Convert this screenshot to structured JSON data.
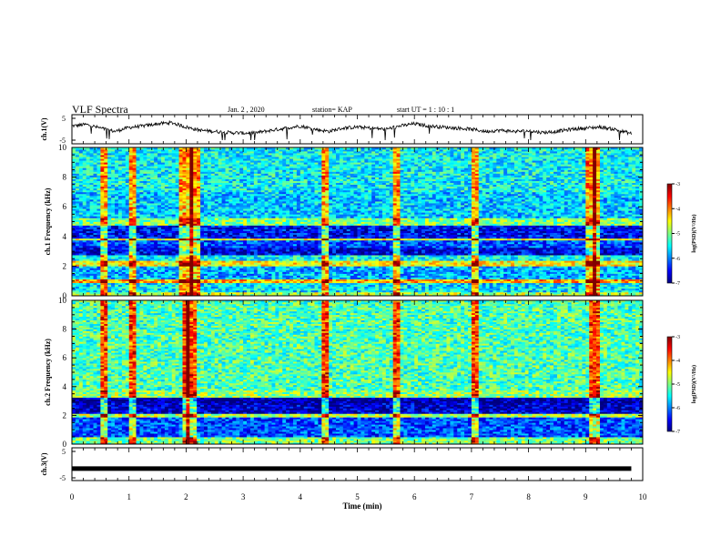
{
  "header": {
    "title": "VLF Spectra",
    "date": "Jan. 2 , 2020",
    "station": "station= KAP",
    "start": "start  UT =  1 : 10 : 1"
  },
  "chart_data": [
    {
      "type": "line",
      "panel": "ch1-voltage",
      "ylabel": "ch.1(V)",
      "ylim": [
        -5,
        5
      ],
      "yticks": [
        "5",
        "-5"
      ],
      "x_range_min": [
        0,
        9.8
      ],
      "series": [
        {
          "x": [
            0,
            0.25,
            0.5,
            0.75,
            1.0,
            1.25,
            1.5,
            1.75,
            2.0,
            2.25,
            2.5,
            2.75,
            3.0,
            3.25,
            3.5,
            3.75,
            4.0,
            4.25,
            4.5,
            4.75,
            5.0,
            5.25,
            5.5,
            5.75,
            6.0,
            6.25,
            6.5,
            6.75,
            7.0,
            7.25,
            7.5,
            7.75,
            8.0,
            8.25,
            8.5,
            8.75,
            9.0,
            9.25,
            9.5,
            9.8
          ],
          "values": [
            1.5,
            2.2,
            0.5,
            -1.0,
            0.8,
            1.5,
            2.5,
            3.0,
            1.0,
            -0.5,
            -1.0,
            -1.5,
            -1.8,
            -1.5,
            -0.5,
            0.5,
            1.5,
            0.0,
            -1.0,
            0.5,
            1.0,
            0.5,
            0.0,
            1.5,
            2.5,
            1.5,
            1.0,
            0.5,
            0.0,
            -1.0,
            -0.5,
            -1.0,
            -0.8,
            -1.5,
            -1.0,
            0.0,
            0.5,
            1.0,
            0.0,
            -2.0
          ]
        }
      ]
    },
    {
      "type": "heatmap",
      "panel": "ch1-spectrogram",
      "ylabel": "ch.1 Frequency (kHz)",
      "xlim": [
        0,
        10
      ],
      "ylim": [
        0,
        10
      ],
      "yticks": [
        0,
        2,
        4,
        6,
        8,
        10
      ],
      "colorbar": {
        "label": "log(PSD)(V²/Hz)",
        "range": [
          -7,
          -3
        ],
        "ticks": [
          "-3",
          "-4",
          "-5",
          "-6",
          "-7"
        ]
      },
      "bands_khz": [
        {
          "from": 0.0,
          "to": 0.3,
          "level": -4.8
        },
        {
          "from": 0.3,
          "to": 0.9,
          "level": -5.6
        },
        {
          "from": 0.9,
          "to": 1.1,
          "level": -4.2
        },
        {
          "from": 1.1,
          "to": 2.0,
          "level": -5.8
        },
        {
          "from": 2.0,
          "to": 2.4,
          "level": -4.5
        },
        {
          "from": 2.4,
          "to": 2.8,
          "level": -5.5
        },
        {
          "from": 2.8,
          "to": 3.3,
          "level": -6.6
        },
        {
          "from": 3.3,
          "to": 3.7,
          "level": -6.2
        },
        {
          "from": 3.7,
          "to": 3.9,
          "level": -4.6
        },
        {
          "from": 3.9,
          "to": 4.7,
          "level": -6.5
        },
        {
          "from": 4.7,
          "to": 5.3,
          "level": -5.0
        },
        {
          "from": 5.3,
          "to": 7.0,
          "level": -5.7
        },
        {
          "from": 7.0,
          "to": 10.0,
          "level": -5.5
        }
      ],
      "bright_times_min": [
        0.55,
        1.05,
        1.95,
        2.05,
        2.15,
        4.45,
        5.7,
        7.05,
        9.1,
        9.2
      ]
    },
    {
      "type": "heatmap",
      "panel": "ch2-spectrogram",
      "ylabel": "ch.2 Frequency (kHz)",
      "xlim": [
        0,
        10
      ],
      "ylim": [
        0,
        10
      ],
      "yticks": [
        0,
        2,
        4,
        6,
        8,
        10
      ],
      "colorbar": {
        "label": "log(PSD)(V²/Hz)",
        "range": [
          -7,
          -3
        ],
        "ticks": [
          "-3",
          "-4",
          "-5",
          "-6",
          "-7"
        ]
      },
      "bands_khz": [
        {
          "from": 0.0,
          "to": 0.5,
          "level": -5.0
        },
        {
          "from": 0.5,
          "to": 1.9,
          "level": -6.2
        },
        {
          "from": 1.9,
          "to": 2.1,
          "level": -4.8
        },
        {
          "from": 2.1,
          "to": 2.9,
          "level": -6.7
        },
        {
          "from": 2.9,
          "to": 3.3,
          "level": -6.9
        },
        {
          "from": 3.3,
          "to": 3.7,
          "level": -4.9
        },
        {
          "from": 3.7,
          "to": 10.0,
          "level": -5.2
        }
      ],
      "bright_times_min": [
        0.55,
        1.05,
        2.0,
        2.1,
        4.45,
        5.7,
        7.05,
        9.15
      ]
    },
    {
      "type": "line",
      "panel": "ch3-voltage",
      "ylabel": "ch.3(V)",
      "xlabel": "Time (min)",
      "ylim": [
        -5,
        5
      ],
      "yticks": [
        "5",
        "-5"
      ],
      "xticks": [
        "0",
        "1",
        "2",
        "3",
        "4",
        "5",
        "6",
        "7",
        "8",
        "9",
        "10"
      ],
      "x_range_min": [
        0,
        9.8
      ],
      "series": [
        {
          "x": [
            0,
            9.8
          ],
          "values": [
            -1.5,
            -1.5
          ]
        }
      ]
    }
  ],
  "colors": {
    "colormap": [
      "#000080",
      "#0000ff",
      "#0080ff",
      "#00ffff",
      "#80ff80",
      "#ffff00",
      "#ff8000",
      "#ff0000",
      "#800000"
    ]
  }
}
